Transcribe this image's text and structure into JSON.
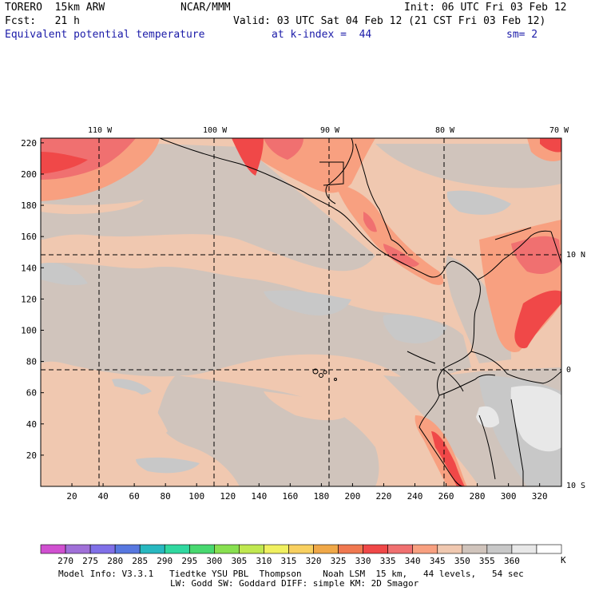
{
  "header": {
    "model": "TORERO  15km ARW",
    "org": "NCAR/MMM",
    "init": "Init: 06 UTC Fri 03 Feb 12",
    "fcst": "Fcst:   21 h",
    "valid": "Valid: 03 UTC Sat 04 Feb 12 (21 CST Fri 03 Feb 12)",
    "field": "Equivalent potential temperature",
    "level": "at k-index =  44",
    "smooth": "sm= 2"
  },
  "map": {
    "lon_labels": [
      "110 W",
      "100 W",
      "90 W",
      "80 W",
      "70 W"
    ],
    "lat_labels": [
      "10 N",
      "0",
      "10 S"
    ],
    "x_ticks": [
      "20",
      "40",
      "60",
      "80",
      "100",
      "120",
      "140",
      "160",
      "180",
      "200",
      "220",
      "240",
      "260",
      "280",
      "300",
      "320"
    ],
    "y_ticks": [
      "220",
      "200",
      "180",
      "160",
      "140",
      "120",
      "100",
      "80",
      "60",
      "40",
      "20"
    ]
  },
  "colorbar": {
    "levels": [
      "270",
      "275",
      "280",
      "285",
      "290",
      "295",
      "300",
      "305",
      "310",
      "315",
      "320",
      "325",
      "330",
      "335",
      "340",
      "345",
      "350",
      "355",
      "360"
    ],
    "unit": "K",
    "colors": [
      "#d050d0",
      "#a070d8",
      "#8070e8",
      "#5878e0",
      "#28b8c0",
      "#30d8a0",
      "#48d870",
      "#88e050",
      "#c0e850",
      "#f0f060",
      "#f8d060",
      "#f0a848",
      "#f07850",
      "#f04848",
      "#f07070",
      "#f8a080",
      "#f0c8b0",
      "#d0c4bc",
      "#c8c8c8",
      "#e8e8e8",
      "#ffffff"
    ]
  },
  "footer": {
    "line1": "Model Info: V3.3.1   Tiedtke YSU PBL  Thompson    Noah LSM  15 km,   44 levels,   54 sec",
    "line2": "LW: Godd SW: Goddard DIFF: simple KM: 2D Smagor"
  }
}
